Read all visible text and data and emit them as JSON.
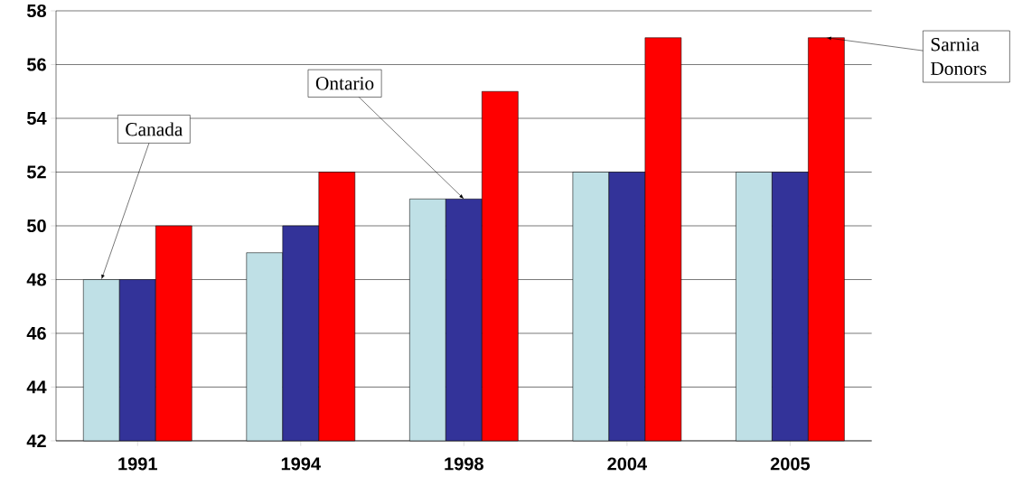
{
  "chart_data": {
    "type": "bar",
    "categories": [
      "1991",
      "1994",
      "1998",
      "2004",
      "2005"
    ],
    "series": [
      {
        "name": "Canada",
        "color": "#bfe0e6",
        "values": [
          48,
          49,
          51,
          52,
          52
        ]
      },
      {
        "name": "Ontario",
        "color": "#333399",
        "values": [
          48,
          50,
          51,
          52,
          52
        ]
      },
      {
        "name": "Sarnia Donors",
        "color": "#ff0000",
        "values": [
          50,
          52,
          55,
          57,
          57
        ]
      }
    ],
    "ylim": [
      42,
      58
    ],
    "yticks": [
      42,
      44,
      46,
      48,
      50,
      52,
      54,
      56,
      58
    ],
    "grid": "y"
  }
}
